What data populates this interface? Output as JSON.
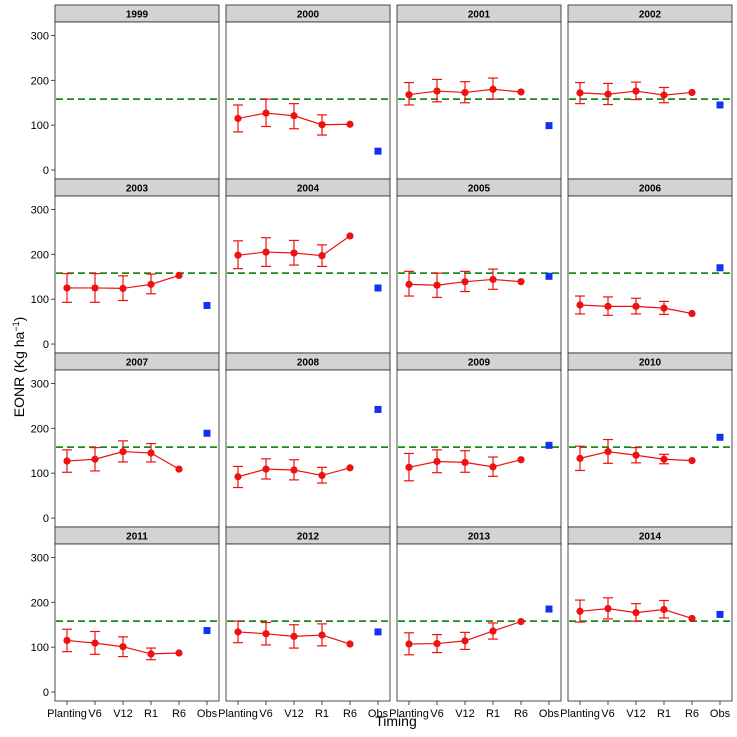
{
  "chart_data": {
    "type": "scatter",
    "xlabel": "Timing",
    "ylabel": "EONR (Kg ha",
    "ylabel_sup": "−1",
    "ylabel_close": ")",
    "categories": [
      "Planting",
      "V6",
      "V12",
      "R1",
      "R6",
      "Obs"
    ],
    "yticks": [
      0,
      100,
      200,
      300
    ],
    "ylim": [
      -20,
      330
    ],
    "reference_line": 158,
    "colors": {
      "model": "#ee1111",
      "observed": "#1133ee",
      "reference": "#1a8a1a",
      "strip": "#d3d3d3"
    },
    "panels": [
      {
        "year": "1999",
        "model": [],
        "observed": null
      },
      {
        "year": "2000",
        "model": [
          [
            115,
            85,
            145
          ],
          [
            127,
            97,
            158
          ],
          [
            121,
            92,
            148
          ],
          [
            101,
            78,
            123
          ],
          [
            102,
            null,
            null
          ]
        ],
        "observed": 42
      },
      {
        "year": "2001",
        "model": [
          [
            168,
            145,
            195
          ],
          [
            176,
            152,
            202
          ],
          [
            173,
            150,
            197
          ],
          [
            180,
            158,
            205
          ],
          [
            174,
            null,
            null
          ]
        ],
        "observed": 99
      },
      {
        "year": "2002",
        "model": [
          [
            172,
            148,
            195
          ],
          [
            169,
            146,
            193
          ],
          [
            176,
            157,
            196
          ],
          [
            167,
            150,
            184
          ],
          [
            173,
            null,
            null
          ]
        ],
        "observed": 145
      },
      {
        "year": "2003",
        "model": [
          [
            125,
            93,
            157
          ],
          [
            125,
            93,
            157
          ],
          [
            124,
            97,
            152
          ],
          [
            133,
            112,
            156
          ],
          [
            153,
            null,
            null
          ]
        ],
        "observed": 86
      },
      {
        "year": "2004",
        "model": [
          [
            198,
            168,
            230
          ],
          [
            205,
            173,
            237
          ],
          [
            203,
            176,
            231
          ],
          [
            197,
            173,
            221
          ],
          [
            241,
            null,
            null
          ]
        ],
        "observed": 125
      },
      {
        "year": "2005",
        "model": [
          [
            133,
            107,
            162
          ],
          [
            131,
            104,
            158
          ],
          [
            139,
            117,
            162
          ],
          [
            144,
            122,
            167
          ],
          [
            139,
            null,
            null
          ]
        ],
        "observed": 151
      },
      {
        "year": "2006",
        "model": [
          [
            87,
            67,
            107
          ],
          [
            84,
            64,
            105
          ],
          [
            84,
            67,
            102
          ],
          [
            80,
            66,
            95
          ],
          [
            68,
            null,
            null
          ]
        ],
        "observed": 170
      },
      {
        "year": "2007",
        "model": [
          [
            127,
            102,
            152
          ],
          [
            131,
            105,
            157
          ],
          [
            148,
            125,
            172
          ],
          [
            145,
            125,
            166
          ],
          [
            109,
            null,
            null
          ]
        ],
        "observed": 189
      },
      {
        "year": "2008",
        "model": [
          [
            92,
            68,
            115
          ],
          [
            109,
            87,
            132
          ],
          [
            107,
            85,
            130
          ],
          [
            95,
            78,
            113
          ],
          [
            112,
            null,
            null
          ]
        ],
        "observed": 242
      },
      {
        "year": "2009",
        "model": [
          [
            113,
            83,
            144
          ],
          [
            126,
            101,
            152
          ],
          [
            124,
            102,
            150
          ],
          [
            114,
            93,
            136
          ],
          [
            130,
            null,
            null
          ]
        ],
        "observed": 162
      },
      {
        "year": "2010",
        "model": [
          [
            133,
            106,
            160
          ],
          [
            148,
            122,
            175
          ],
          [
            140,
            123,
            157
          ],
          [
            131,
            121,
            142
          ],
          [
            128,
            null,
            null
          ]
        ],
        "observed": 180
      },
      {
        "year": "2011",
        "model": [
          [
            115,
            90,
            140
          ],
          [
            109,
            84,
            135
          ],
          [
            101,
            79,
            123
          ],
          [
            85,
            72,
            98
          ],
          [
            87,
            null,
            null
          ]
        ],
        "observed": 137
      },
      {
        "year": "2012",
        "model": [
          [
            134,
            110,
            158
          ],
          [
            130,
            105,
            155
          ],
          [
            124,
            98,
            150
          ],
          [
            127,
            103,
            152
          ],
          [
            107,
            null,
            null
          ]
        ],
        "observed": 134
      },
      {
        "year": "2013",
        "model": [
          [
            107,
            83,
            132
          ],
          [
            108,
            88,
            128
          ],
          [
            114,
            95,
            133
          ],
          [
            136,
            118,
            154
          ],
          [
            157,
            null,
            null
          ]
        ],
        "observed": 185
      },
      {
        "year": "2014",
        "model": [
          [
            180,
            156,
            205
          ],
          [
            186,
            163,
            210
          ],
          [
            177,
            158,
            197
          ],
          [
            184,
            165,
            204
          ],
          [
            164,
            null,
            null
          ]
        ],
        "observed": 173
      }
    ]
  }
}
